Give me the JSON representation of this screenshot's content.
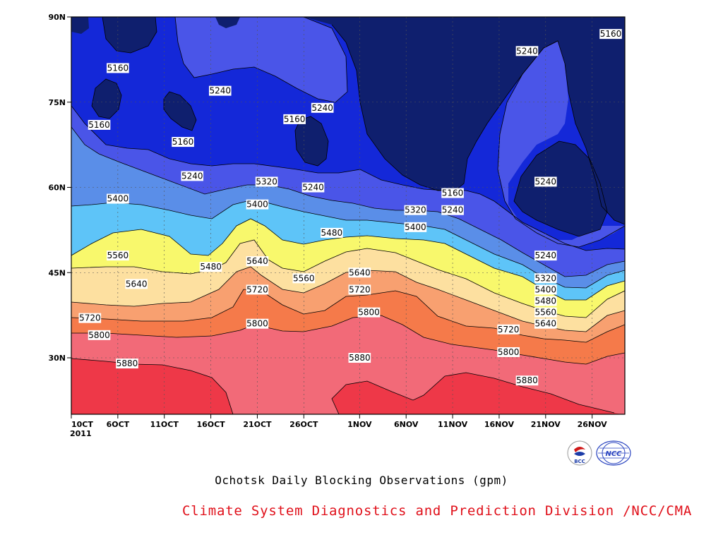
{
  "chart_data": {
    "type": "contour",
    "title": "Ochotsk Daily Blocking Observations (gpm)",
    "variable_unit": "gpm",
    "y_ticks": [
      "90N",
      "75N",
      "60N",
      "45N",
      "30N"
    ],
    "x_ticks": [
      "10CT",
      "6OCT",
      "11OCT",
      "16OCT",
      "21OCT",
      "26OCT",
      "1NOV",
      "6NOV",
      "11NOV",
      "16NOV",
      "21NOV",
      "26NOV"
    ],
    "x_year": "2011",
    "levels": [
      5160,
      5240,
      5320,
      5400,
      5480,
      5560,
      5640,
      5720,
      5800,
      5880
    ],
    "colors": [
      "#0f1f6e",
      "#1428d8",
      "#4a55e8",
      "#5a8ee8",
      "#5ec4f8",
      "#f8f86c",
      "#fde0a0",
      "#f8a070",
      "#f57a4a",
      "#f26a78",
      "#ee3848"
    ],
    "grid": true,
    "contour_labels": [
      {
        "text": "5160",
        "x": "6OCT",
        "lat": 81
      },
      {
        "text": "5160",
        "x": "4OCT",
        "lat": 71
      },
      {
        "text": "5160",
        "x": "13OCT",
        "lat": 68
      },
      {
        "text": "5160",
        "x": "25OCT",
        "lat": 72
      },
      {
        "text": "5160",
        "x": "11NOV",
        "lat": 59
      },
      {
        "text": "5160",
        "x": "28NOV",
        "lat": 87
      },
      {
        "text": "5240",
        "x": "17OCT",
        "lat": 77
      },
      {
        "text": "5240",
        "x": "14OCT",
        "lat": 62
      },
      {
        "text": "5240",
        "x": "28OCT",
        "lat": 74
      },
      {
        "text": "5240",
        "x": "27OCT",
        "lat": 60
      },
      {
        "text": "5240",
        "x": "19NOV",
        "lat": 84
      },
      {
        "text": "5240",
        "x": "21NOV",
        "lat": 61
      },
      {
        "text": "5240",
        "x": "11NOV",
        "lat": 56
      },
      {
        "text": "5240",
        "x": "21NOV",
        "lat": 48
      },
      {
        "text": "5320",
        "x": "22OCT",
        "lat": 61
      },
      {
        "text": "5320",
        "x": "7NOV",
        "lat": 56
      },
      {
        "text": "5320",
        "x": "21NOV",
        "lat": 44
      },
      {
        "text": "5400",
        "x": "6OCT",
        "lat": 58
      },
      {
        "text": "5400",
        "x": "21OCT",
        "lat": 57
      },
      {
        "text": "5400",
        "x": "7NOV",
        "lat": 53
      },
      {
        "text": "5400",
        "x": "21NOV",
        "lat": 42
      },
      {
        "text": "5480",
        "x": "29OCT",
        "lat": 52
      },
      {
        "text": "5480",
        "x": "16OCT",
        "lat": 46
      },
      {
        "text": "5480",
        "x": "21NOV",
        "lat": 40
      },
      {
        "text": "5560",
        "x": "6OCT",
        "lat": 48
      },
      {
        "text": "5560",
        "x": "26OCT",
        "lat": 44
      },
      {
        "text": "5560",
        "x": "21NOV",
        "lat": 38
      },
      {
        "text": "5640",
        "x": "21OCT",
        "lat": 47
      },
      {
        "text": "5640",
        "x": "8OCT",
        "lat": 43
      },
      {
        "text": "5640",
        "x": "1NOV",
        "lat": 45
      },
      {
        "text": "5640",
        "x": "21NOV",
        "lat": 36
      },
      {
        "text": "5720",
        "x": "21OCT",
        "lat": 42
      },
      {
        "text": "5720",
        "x": "1NOV",
        "lat": 42
      },
      {
        "text": "5720",
        "x": "3OCT",
        "lat": 37
      },
      {
        "text": "5720",
        "x": "17NOV",
        "lat": 35
      },
      {
        "text": "5800",
        "x": "4OCT",
        "lat": 34
      },
      {
        "text": "5800",
        "x": "21OCT",
        "lat": 36
      },
      {
        "text": "5800",
        "x": "2NOV",
        "lat": 38
      },
      {
        "text": "5800",
        "x": "17NOV",
        "lat": 31
      },
      {
        "text": "5880",
        "x": "7OCT",
        "lat": 29
      },
      {
        "text": "5880",
        "x": "1NOV",
        "lat": 30
      },
      {
        "text": "5880",
        "x": "19NOV",
        "lat": 26
      }
    ]
  },
  "footer": {
    "title": "Ochotsk Daily Blocking Observations (gpm)",
    "credit": "Climate System Diagnostics and Prediction Division /NCC/CMA",
    "logo_bcc_text": "BCC",
    "logo_ncc_text": "NCC"
  }
}
